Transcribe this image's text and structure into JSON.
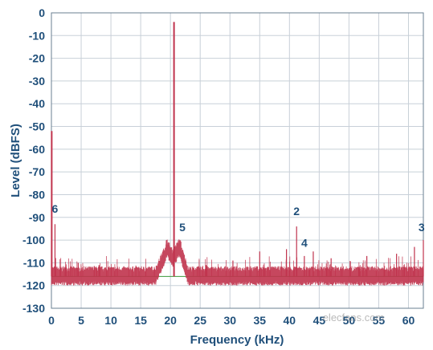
{
  "chart_data": {
    "type": "line",
    "xlabel": "Frequency (kHz)",
    "ylabel": "Level (dBFS)",
    "xlim": [
      0,
      62.5
    ],
    "ylim": [
      -130,
      0
    ],
    "x_ticks": [
      0,
      5,
      10,
      15,
      20,
      25,
      30,
      35,
      40,
      45,
      50,
      55,
      60
    ],
    "y_ticks": [
      0,
      -10,
      -20,
      -30,
      -40,
      -50,
      -60,
      -70,
      -80,
      -90,
      -100,
      -110,
      -120,
      -130
    ],
    "grid": true,
    "colors": {
      "spectrum": "#c0334d",
      "noise_floor": "#3c9a3c",
      "grid": "#c8d0d8",
      "axis_text": "#1f4f7a"
    },
    "noise_floor_db": -116,
    "series": [
      {
        "x": [
          0,
          0.3,
          0.6,
          1,
          5,
          10,
          15,
          17,
          18,
          19,
          20,
          20.3,
          20.6,
          21,
          21.5,
          22,
          22.5,
          23,
          25,
          30,
          35,
          40,
          41.2,
          42.5,
          45,
          50,
          55,
          60,
          62.5
        ],
        "values": [
          -52,
          -112,
          -93,
          -116,
          -116,
          -116,
          -116,
          -116,
          -110,
          -106,
          -105,
          -40,
          -4,
          -106,
          -104,
          -106,
          -113,
          -116,
          -116,
          -116,
          -116,
          -116,
          -94,
          -107,
          -116,
          -116,
          -116,
          -116,
          -100
        ]
      }
    ],
    "spurs": [
      {
        "x": 0.6,
        "y": -93
      },
      {
        "x": 20.6,
        "y": -4
      },
      {
        "x": 41.2,
        "y": -94
      },
      {
        "x": 42.5,
        "y": -107
      },
      {
        "x": 62.5,
        "y": -100
      },
      {
        "x": 35,
        "y": -105
      },
      {
        "x": 44,
        "y": -105
      },
      {
        "x": 4.5,
        "y": -110
      },
      {
        "x": 8,
        "y": -111
      },
      {
        "x": 53,
        "y": -107
      },
      {
        "x": 58,
        "y": -106
      },
      {
        "x": 61,
        "y": -103
      },
      {
        "x": 39.5,
        "y": -104
      },
      {
        "x": 47,
        "y": -108
      },
      {
        "x": 30.5,
        "y": -109
      },
      {
        "x": 26,
        "y": -111
      }
    ],
    "annotations": [
      {
        "label": "6",
        "x": 0.6,
        "y": -88
      },
      {
        "label": "5",
        "x": 22,
        "y": -96
      },
      {
        "label": "2",
        "x": 41.2,
        "y": -89
      },
      {
        "label": "4",
        "x": 42.5,
        "y": -103
      },
      {
        "label": "3",
        "x": 62.2,
        "y": -96
      }
    ]
  },
  "watermark": "elecfans.com"
}
